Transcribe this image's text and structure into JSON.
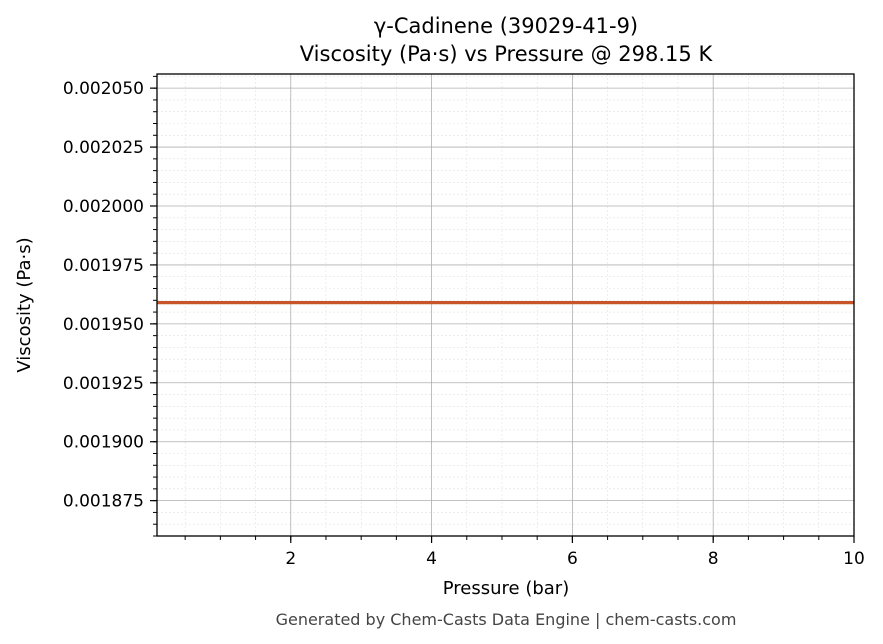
{
  "chart_data": {
    "type": "line",
    "title_line1": "γ-Cadinene (39029-41-9)",
    "title_line2": "Viscosity (Pa·s) vs Pressure @ 298.15 K",
    "xlabel": "Pressure (bar)",
    "ylabel": "Viscosity (Pa·s)",
    "xlim": [
      0.1,
      10
    ],
    "ylim": [
      0.00186,
      0.002056
    ],
    "xticks": [
      2,
      4,
      6,
      8,
      10
    ],
    "xtick_labels": [
      "2",
      "4",
      "6",
      "8",
      "10"
    ],
    "yticks": [
      0.001875,
      0.0019,
      0.001925,
      0.00195,
      0.001975,
      0.002,
      0.002025,
      0.00205
    ],
    "ytick_labels": [
      "0.001875",
      "0.001900",
      "0.001925",
      "0.001950",
      "0.001975",
      "0.002000",
      "0.002025",
      "0.002050"
    ],
    "grid": true,
    "series": [
      {
        "color": "#c8552a",
        "x": [
          0.1,
          1,
          2,
          3,
          4,
          5,
          6,
          7,
          8,
          9,
          10
        ],
        "y": [
          0.001959,
          0.001959,
          0.001959,
          0.001959,
          0.001959,
          0.001959,
          0.001959,
          0.001959,
          0.001959,
          0.001959,
          0.001959
        ]
      }
    ]
  },
  "footer": "Generated by Chem-Casts Data Engine | chem-casts.com"
}
